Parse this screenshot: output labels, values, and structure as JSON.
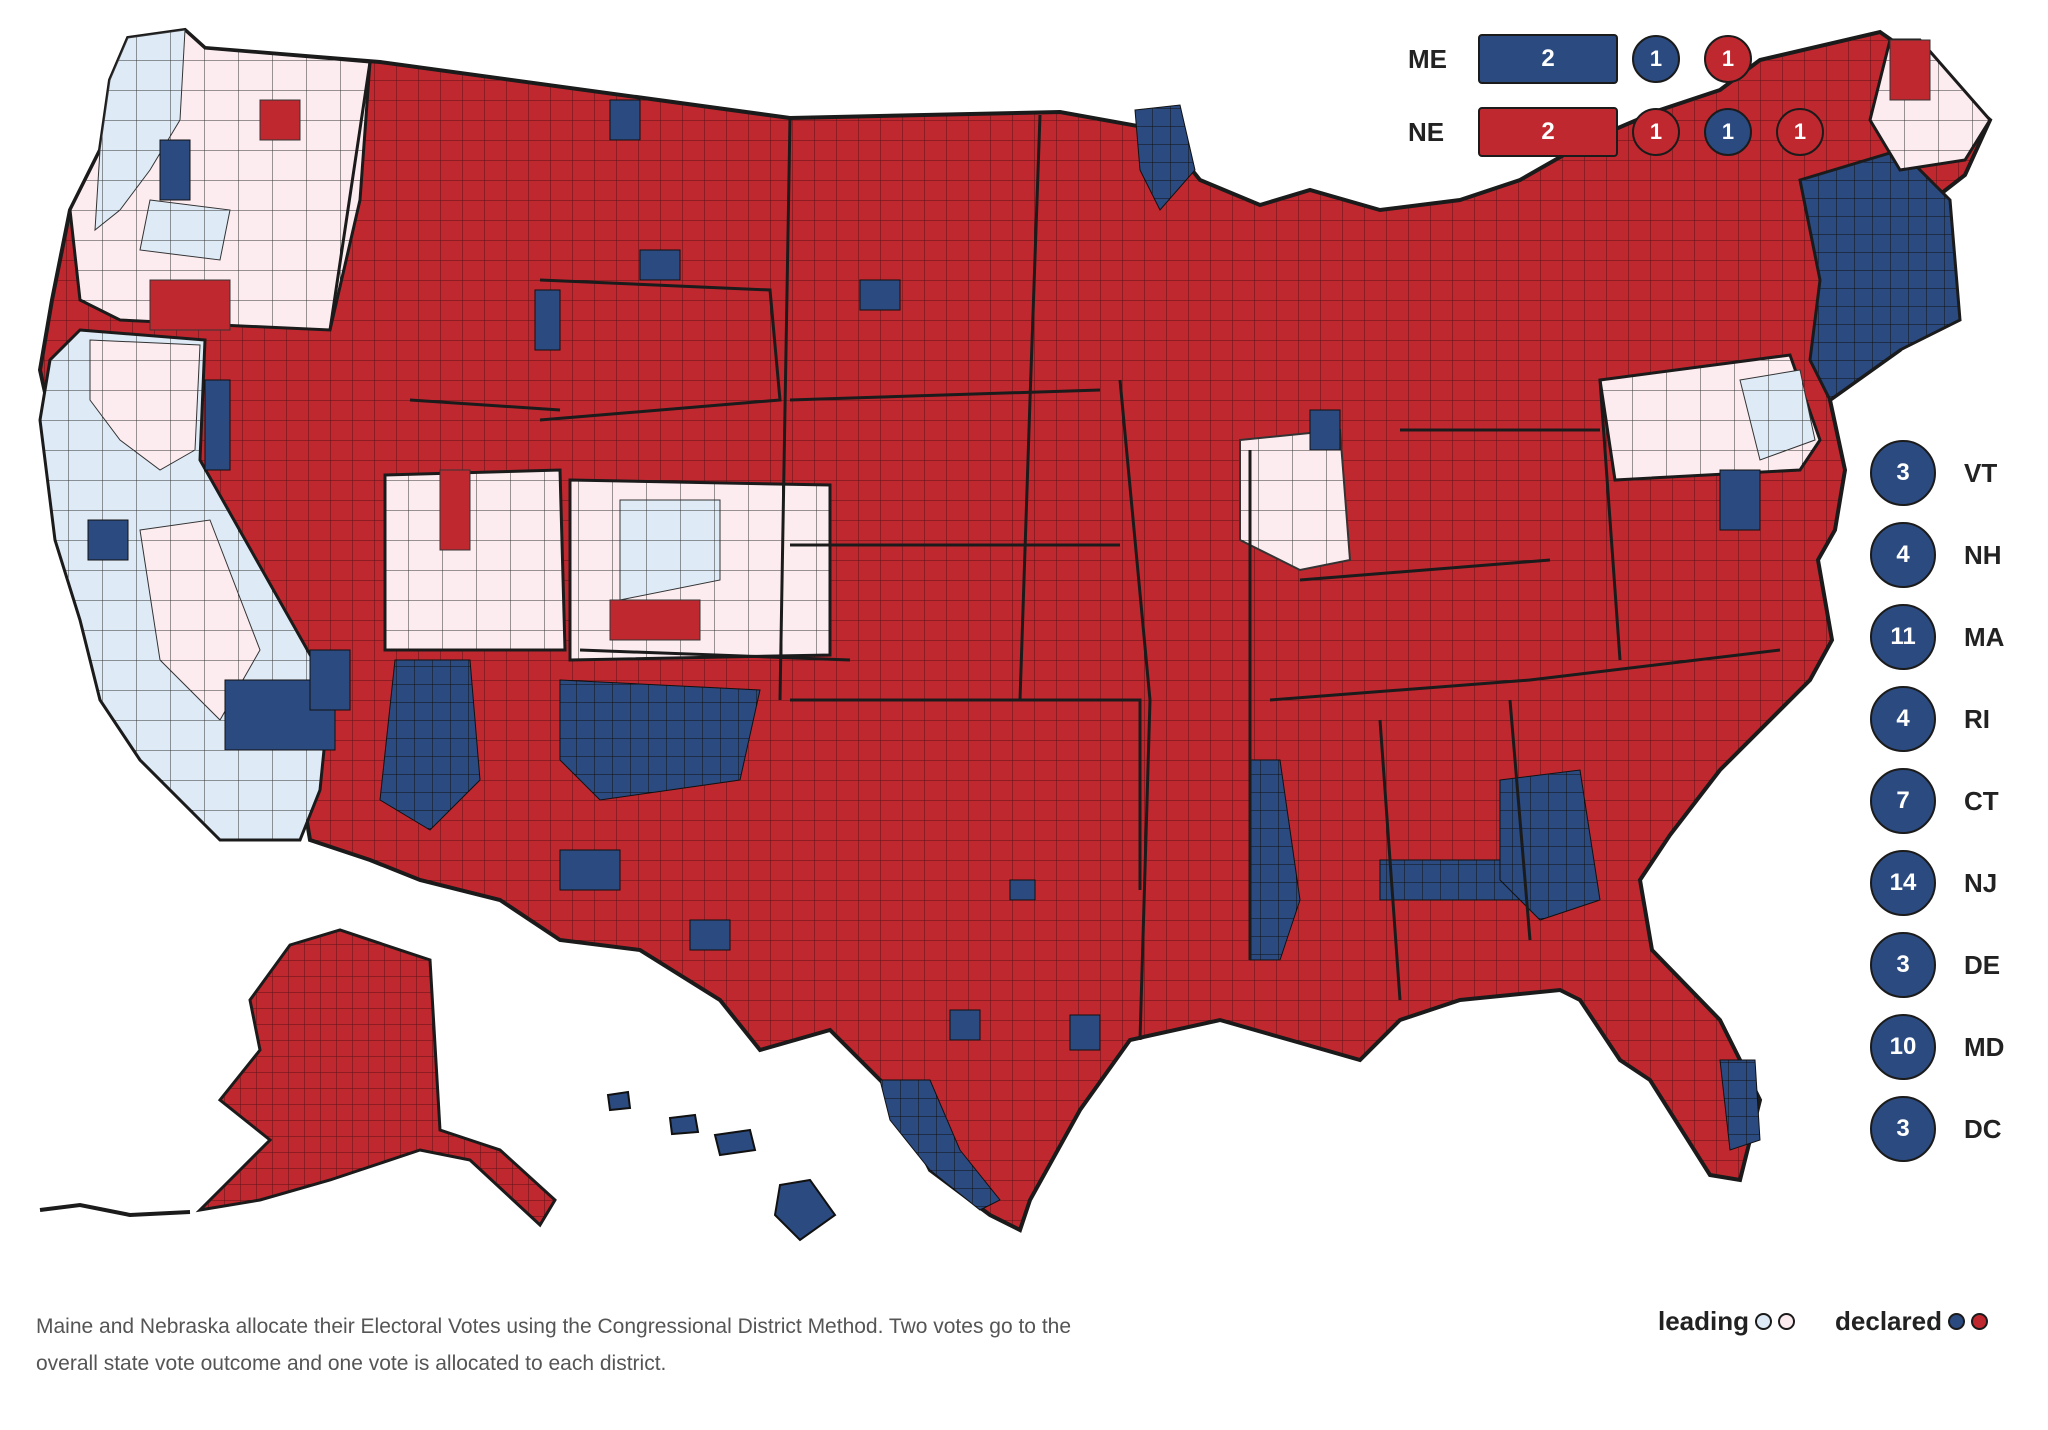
{
  "colors": {
    "dem_declared": "#2a4a80",
    "rep_declared": "#c0282f",
    "dem_leading": "#deebf7",
    "rep_leading": "#fdecef",
    "border": "#1b1b1b"
  },
  "split_states": [
    {
      "abbr": "ME",
      "statewide": {
        "votes": "2",
        "party": "dem"
      },
      "districts": [
        {
          "votes": "1",
          "party": "dem"
        },
        {
          "votes": "1",
          "party": "rep"
        }
      ]
    },
    {
      "abbr": "NE",
      "statewide": {
        "votes": "2",
        "party": "rep"
      },
      "districts": [
        {
          "votes": "1",
          "party": "rep"
        },
        {
          "votes": "1",
          "party": "dem"
        },
        {
          "votes": "1",
          "party": "rep"
        }
      ]
    }
  ],
  "small_states": [
    {
      "votes": "3",
      "abbr": "VT"
    },
    {
      "votes": "4",
      "abbr": "NH"
    },
    {
      "votes": "11",
      "abbr": "MA"
    },
    {
      "votes": "4",
      "abbr": "RI"
    },
    {
      "votes": "7",
      "abbr": "CT"
    },
    {
      "votes": "14",
      "abbr": "NJ"
    },
    {
      "votes": "3",
      "abbr": "DE"
    },
    {
      "votes": "10",
      "abbr": "MD"
    },
    {
      "votes": "3",
      "abbr": "DC"
    }
  ],
  "footnote": {
    "line1": "Maine and Nebraska allocate their Electoral Votes using the Congressional District Method. Two votes go to the",
    "line2": "overall state vote outcome and one vote is allocated to each district."
  },
  "legend": {
    "leading_label": "leading",
    "declared_label": "declared"
  },
  "map_regions": [
    {
      "name": "pacific-northwest-leading",
      "party": "rep",
      "status": "leading"
    },
    {
      "name": "california-leading",
      "party": "dem",
      "status": "leading"
    },
    {
      "name": "west-declared",
      "party": "rep",
      "status": "declared"
    },
    {
      "name": "southwest-declared",
      "party": "dem",
      "status": "declared"
    },
    {
      "name": "colorado-leading",
      "party": "rep",
      "status": "leading"
    },
    {
      "name": "pennsylvania-leading",
      "party": "rep",
      "status": "leading"
    },
    {
      "name": "northeast-declared",
      "party": "dem",
      "status": "declared"
    }
  ]
}
